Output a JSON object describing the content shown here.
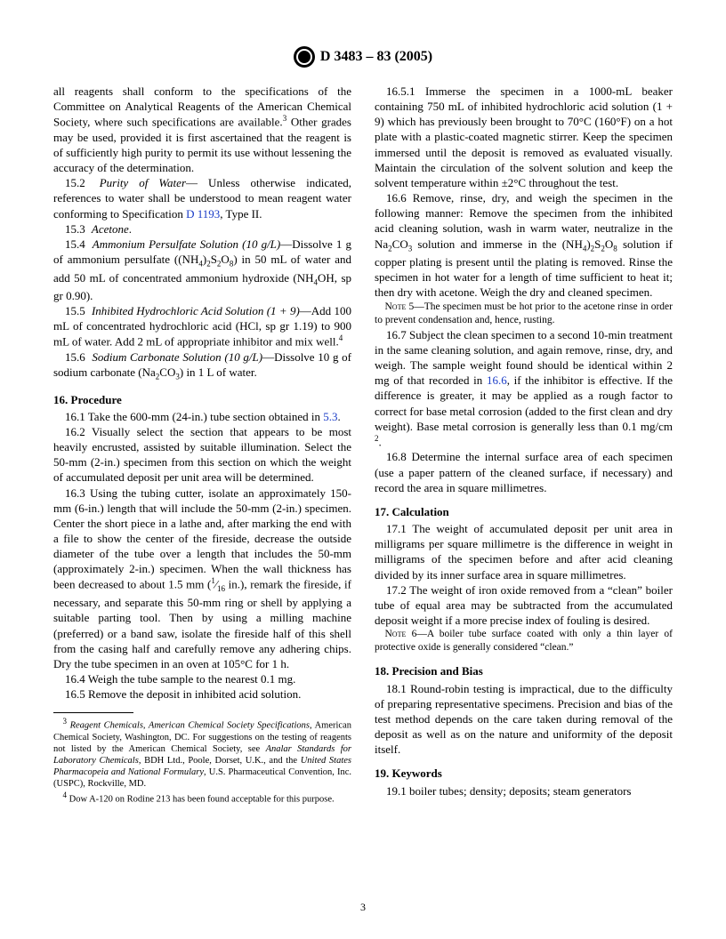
{
  "header": {
    "std_number": "D 3483 – 83 (2005)"
  },
  "col1": {
    "lead_in": "all reagents shall conform to the specifications of the Committee on Analytical Reagents of the American Chemical Society, where such specifications are available.",
    "lead_tail": " Other grades may be used, provided it is first ascertained that the reagent is of sufficiently high purity to permit its use without lessening the accuracy of the determination.",
    "p15_2a": "15.2 ",
    "p15_2title": "Purity of Water",
    "p15_2b": "— Unless otherwise indicated, references to water shall be understood to mean reagent water conforming to Specification ",
    "p15_2ref": "D 1193",
    "p15_2c": ", Type II.",
    "p15_3a": "15.3 ",
    "p15_3title": "Acetone",
    "p15_3b": ".",
    "p15_4a": "15.4 ",
    "p15_4title": "Ammonium Persulfate Solution (10 g/L)",
    "p15_4b": "—Dissolve 1 g of ammonium persulfate ((NH",
    "p15_4c": ")",
    "p15_4d": "S",
    "p15_4e": "O",
    "p15_4f": ") in 50 mL of water and add 50 mL of concentrated ammonium hydroxide (NH",
    "p15_4g": "OH, sp gr 0.90).",
    "p15_5a": "15.5 ",
    "p15_5title": "Inhibited Hydrochloric Acid Solution (1 + 9)",
    "p15_5b": "—Add 100 mL of concentrated hydrochloric acid (HCl, sp gr 1.19) to 900 mL of water. Add 2 mL of appropriate inhibitor and mix well.",
    "p15_6a": "15.6 ",
    "p15_6title": "Sodium Carbonate Solution (10 g/L)",
    "p15_6b": "—Dissolve 10 g of sodium carbonate (Na",
    "p15_6c": "CO",
    "p15_6d": ") in 1 L of water.",
    "h16": "16. Procedure",
    "p16_1a": "16.1 Take the 600-mm (24-in.) tube section obtained in ",
    "p16_1ref": "5.3",
    "p16_1b": ".",
    "p16_2": "16.2 Visually select the section that appears to be most heavily encrusted, assisted by suitable illumination. Select the 50-mm (2-in.) specimen from this section on which the weight of accumulated deposit per unit area will be determined.",
    "p16_3a": "16.3 Using the tubing cutter, isolate an approximately 150-mm (6-in.) length that will include the 50-mm (2-in.) specimen. Center the short piece in a lathe and, after marking the end with a file to show the center of the fireside, decrease the outside diameter of the tube over a length that includes the 50-mm (approximately 2-in.) specimen. When the wall thickness has been decreased to about 1.5 mm (",
    "p16_3b": " in.), remark the fireside, if necessary, and separate this 50-mm ring or shell by applying a suitable parting tool. Then by using a milling machine (preferred) or a band saw, isolate the fireside half of this shell from the casing half and carefully remove any adhering chips. Dry the tube specimen in an oven at 105°C for 1 h.",
    "p16_4": "16.4 Weigh the tube sample to the nearest 0.1 mg.",
    "p16_5": "16.5 Remove the deposit in inhibited acid solution.",
    "fn3a": "Reagent Chemicals, American Chemical Society Specifications",
    "fn3b": ", American Chemical Society, Washington, DC. For suggestions on the testing of reagents not listed by the American Chemical Society, see ",
    "fn3c": "Analar Standards for Laboratory Chemicals",
    "fn3d": ", BDH Ltd., Poole, Dorset, U.K., and the ",
    "fn3e": "United States Pharmacopeia and National Formulary",
    "fn3f": ", U.S. Pharmaceutical Convention, Inc. (USPC), Rockville, MD.",
    "fn4": " Dow A-120 on Rodine 213 has been found acceptable for this purpose."
  },
  "col2": {
    "p16_5_1": "16.5.1 Immerse the specimen in a 1000-mL beaker containing 750 mL of inhibited hydrochloric acid solution (1 + 9) which has previously been brought to 70°C (160°F) on a hot plate with a plastic-coated magnetic stirrer. Keep the specimen immersed until the deposit is removed as evaluated visually. Maintain the circulation of the solvent solution and keep the solvent temperature within ±2°C throughout the test.",
    "p16_6a": "16.6 Remove, rinse, dry, and weigh the specimen in the following manner: Remove the specimen from the inhibited acid cleaning solution, wash in warm water, neutralize in the Na",
    "p16_6b": "CO",
    "p16_6c": " solution and immerse in the (NH",
    "p16_6d": ")",
    "p16_6e": "S",
    "p16_6f": "O",
    "p16_6g": " solution if copper plating is present until the plating is removed. Rinse the specimen in hot water for a length of time sufficient to heat it; then dry with acetone. Weigh the dry and cleaned specimen.",
    "note5head": "Note 5",
    "note5": "—The specimen must be hot prior to the acetone rinse in order to prevent condensation and, hence, rusting.",
    "p16_7a": "16.7 Subject the clean specimen to a second 10-min treatment in the same cleaning solution, and again remove, rinse, dry, and weigh. The sample weight found should be identical within 2 mg of that recorded in ",
    "p16_7ref": "16.6",
    "p16_7b": ", if the inhibitor is effective. If the difference is greater, it may be applied as a rough factor to correct for base metal corrosion (added to the first clean and dry weight). Base metal corrosion is generally less than 0.1 mg/cm",
    "p16_7c": ".",
    "p16_8": "16.8 Determine the internal surface area of each specimen (use a paper pattern of the cleaned surface, if necessary) and record the area in square millimetres.",
    "h17": "17. Calculation",
    "p17_1": "17.1 The weight of accumulated deposit per unit area in milligrams per square millimetre is the difference in weight in milligrams of the specimen before and after acid cleaning divided by its inner surface area in square millimetres.",
    "p17_2": "17.2 The weight of iron oxide removed from a “clean” boiler tube of equal area may be subtracted from the accumulated deposit weight if a more precise index of fouling is desired.",
    "note6head": "Note 6",
    "note6": "—A boiler tube surface coated with only a thin layer of protective oxide is generally considered “clean.”",
    "h18": "18. Precision and Bias",
    "p18_1": "18.1 Round-robin testing is impractical, due to the difficulty of preparing representative specimens. Precision and bias of the test method depends on the care taken during removal of the deposit as well as on the nature and uniformity of the deposit itself.",
    "h19": "19. Keywords",
    "p19_1": "19.1 boiler tubes; density; deposits; steam generators"
  },
  "page_number": "3"
}
